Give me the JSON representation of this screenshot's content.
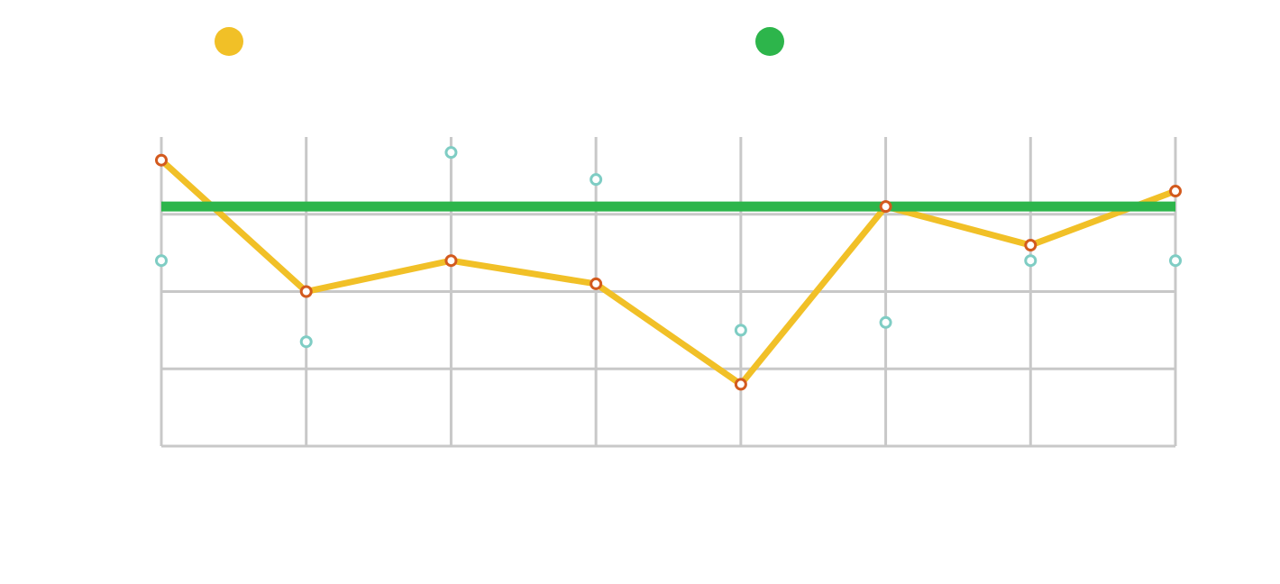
{
  "chart_data": {
    "type": "line",
    "x": [
      "",
      "",
      "",
      "",
      "",
      "",
      "",
      ""
    ],
    "ylim": [
      0,
      4
    ],
    "grid": true,
    "legend_position": "top",
    "series": [
      {
        "color": "#F1C027",
        "marker_color": "#D35A1E",
        "values": [
          3.7,
          2.0,
          2.4,
          2.1,
          0.8,
          3.1,
          2.6,
          3.3
        ]
      },
      {
        "color": "#2DB54B",
        "values": [
          3.1,
          3.1,
          3.1,
          3.1,
          3.1,
          3.1,
          3.1,
          3.1
        ]
      }
    ],
    "extra_points": {
      "color": "#7FCDC4",
      "values": [
        2.4,
        1.35,
        3.8,
        3.45,
        1.5,
        1.6,
        2.4,
        2.4
      ]
    }
  }
}
